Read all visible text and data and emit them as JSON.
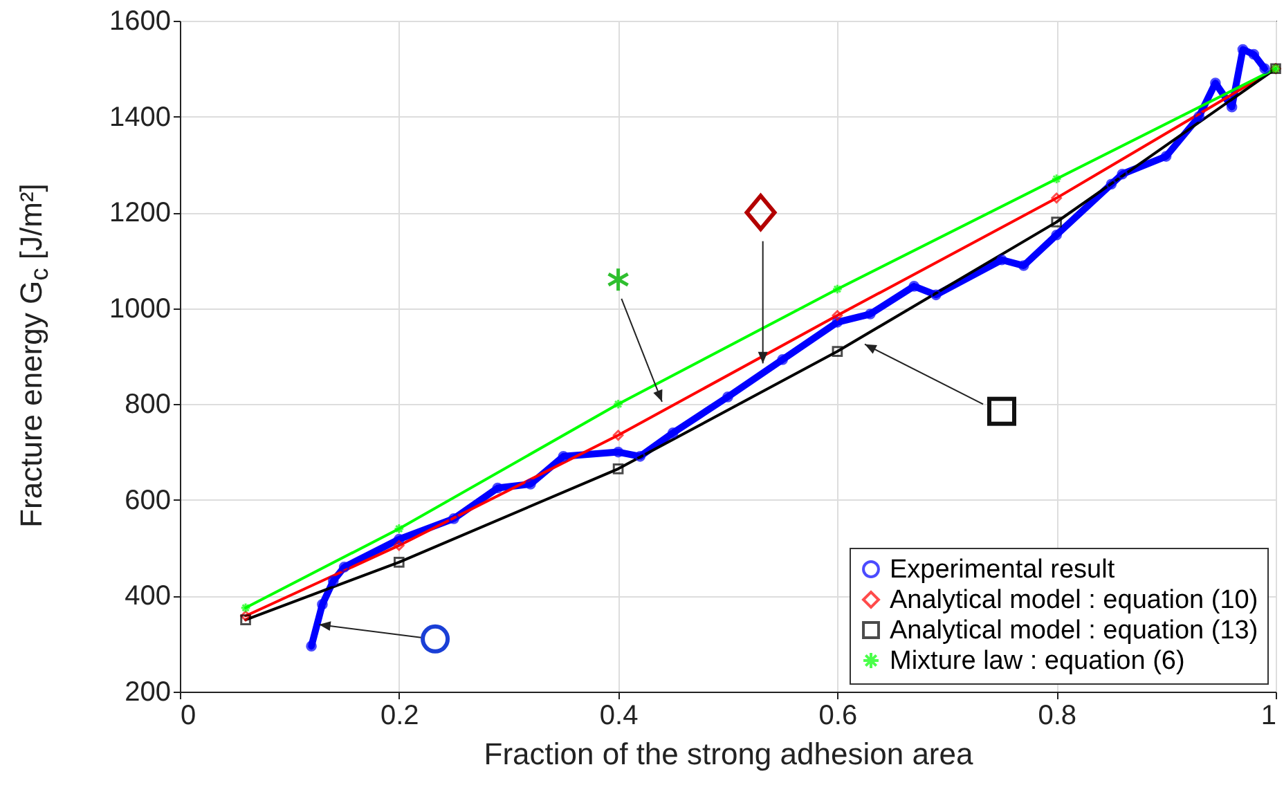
{
  "chart_data": {
    "type": "line",
    "xlabel": "Fraction of the strong adhesion area",
    "ylabel": "Fracture energy G$_{c}$ [J/m²]",
    "xlim": [
      0,
      1
    ],
    "ylim": [
      200,
      1600
    ],
    "xticks": [
      0,
      0.2,
      0.4,
      0.6,
      0.8,
      1
    ],
    "yticks": [
      200,
      400,
      600,
      800,
      1000,
      1200,
      1400,
      1600
    ],
    "grid": true,
    "legend": "bottom right",
    "line_style": "solid",
    "series": [
      {
        "name": "Experimental result",
        "color": "#0000ff",
        "marker": "circle",
        "x": [
          0.12,
          0.13,
          0.14,
          0.15,
          0.2,
          0.25,
          0.29,
          0.32,
          0.35,
          0.4,
          0.42,
          0.45,
          0.5,
          0.55,
          0.6,
          0.63,
          0.67,
          0.69,
          0.75,
          0.77,
          0.8,
          0.85,
          0.86,
          0.9,
          0.93,
          0.945,
          0.96,
          0.97,
          0.98,
          0.99
        ],
        "values": [
          295,
          382,
          431,
          460,
          518,
          561,
          625,
          633,
          691,
          700,
          691,
          740,
          815,
          893,
          971,
          988,
          1046,
          1028,
          1101,
          1089,
          1153,
          1259,
          1280,
          1317,
          1400,
          1470,
          1420,
          1540,
          1530,
          1500
        ]
      },
      {
        "name": "Analytical model : equation (10)",
        "color": "#ff0000",
        "marker": "diamond",
        "x": [
          0.06,
          0.2,
          0.4,
          0.6,
          0.8,
          1
        ],
        "values": [
          358,
          505,
          735,
          985,
          1230,
          1500
        ]
      },
      {
        "name": "Analytical model : equation (13)",
        "color": "#000000",
        "marker": "square",
        "x": [
          0.06,
          0.2,
          0.4,
          0.6,
          0.8,
          1
        ],
        "values": [
          350,
          470,
          665,
          910,
          1180,
          1500
        ]
      },
      {
        "name": "Mixture law : equation (6)",
        "color": "#00ff00",
        "marker": "cross",
        "x": [
          0.06,
          0.2,
          0.4,
          0.6,
          0.8,
          1
        ],
        "values": [
          375,
          540,
          800,
          1040,
          1270,
          1500
        ]
      }
    ]
  }
}
